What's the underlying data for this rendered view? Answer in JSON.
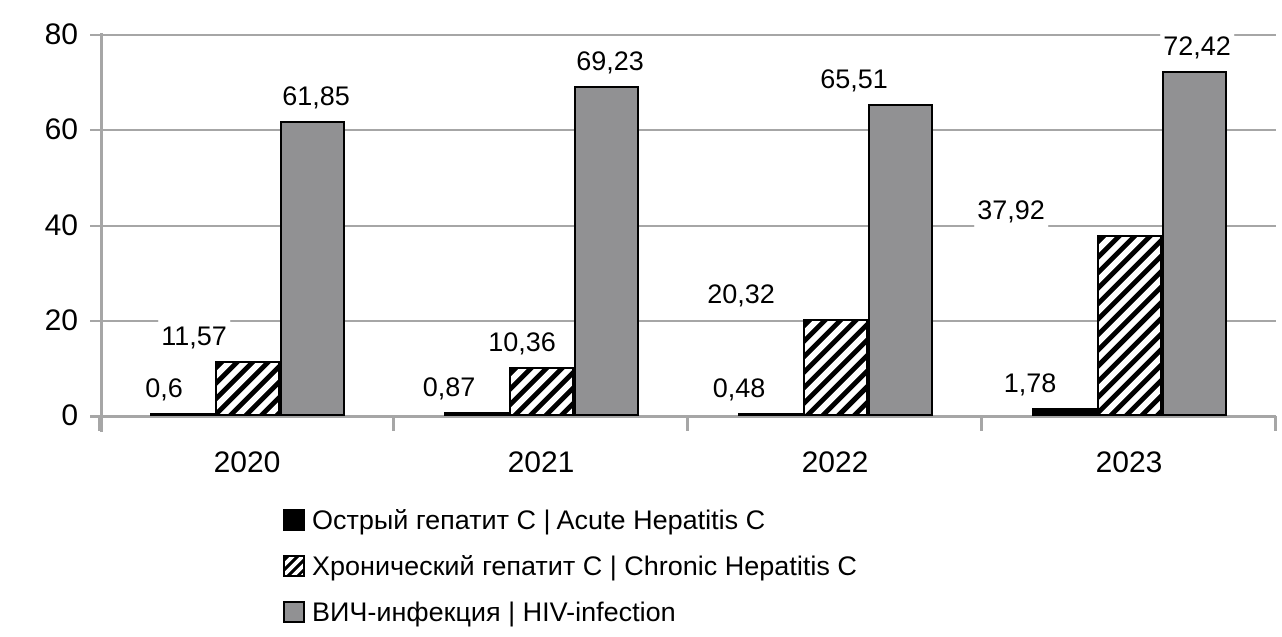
{
  "chart_data": {
    "type": "bar",
    "title": "",
    "xlabel": "",
    "ylabel": "",
    "categories": [
      "2020",
      "2021",
      "2022",
      "2023"
    ],
    "series": [
      {
        "name": "Острый гепатит C | Acute Hepatitis C",
        "pattern": "solid-black",
        "values": [
          0.6,
          0.87,
          0.48,
          1.78
        ],
        "labels": [
          "0,6",
          "0,87",
          "0,48",
          "1,78"
        ],
        "label_dx": [
          -18,
          -27,
          -31,
          -34
        ]
      },
      {
        "name": "Хронический гепатит C | Chronic Hepatitis C",
        "pattern": "diagonal-hatch",
        "values": [
          11.57,
          10.36,
          20.32,
          37.92
        ],
        "labels": [
          "11,57",
          "10,36",
          "20,32",
          "37,92"
        ],
        "label_dx": [
          -53,
          -19,
          -94,
          -118
        ]
      },
      {
        "name": "ВИЧ-инфекция | HIV-infection",
        "pattern": "solid-gray",
        "values": [
          61.85,
          69.23,
          65.51,
          72.42
        ],
        "labels": [
          "61,85",
          "69,23",
          "65,51",
          "72,42"
        ],
        "label_dx": [
          4,
          4,
          -46,
          3
        ]
      }
    ],
    "y_axis": {
      "min": 0,
      "max": 80,
      "tick_interval": 20,
      "ticks": [
        0,
        20,
        40,
        60,
        80
      ],
      "tick_labels": [
        "0",
        "20",
        "40",
        "60",
        "80"
      ]
    },
    "grid": true,
    "legend_position": "bottom-left",
    "decimal_separator": ",",
    "colors": {
      "acute_fill": "#000000",
      "chronic_stripe": "#000000",
      "chronic_bg": "#ffffff",
      "hiv_fill": "#919193",
      "gridline": "#a6a6a6",
      "axis": "#a6a6a6",
      "text": "#000000",
      "background": "#ffffff"
    }
  }
}
